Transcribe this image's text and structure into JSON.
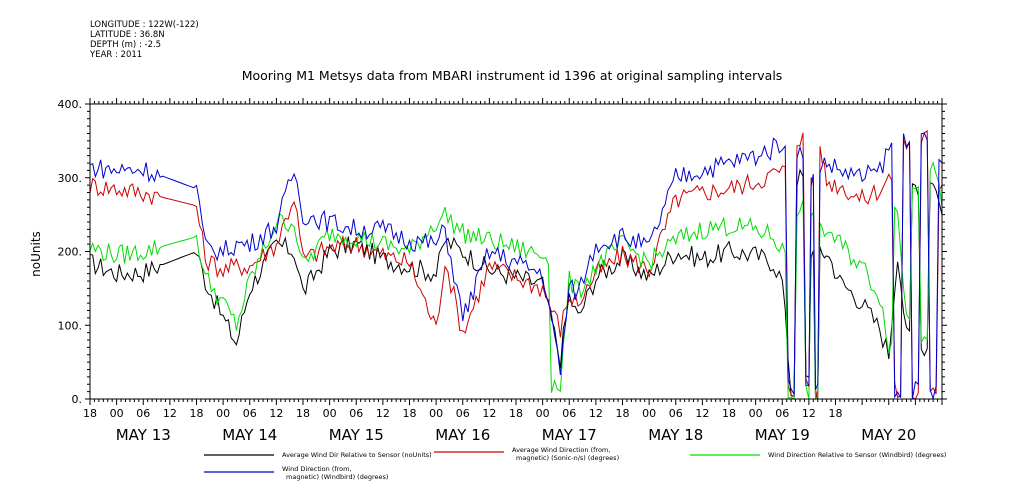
{
  "metadata": [
    "LONGITUDE : 122W(-122)",
    "LATITUDE : 36.8N",
    "DEPTH (m) : -2.5",
    "YEAR : 2011"
  ],
  "chart_data": {
    "type": "line",
    "title": "Mooring M1 Metsys data from MBARI instrument id 1396 at original sampling intervals",
    "ylabel": "noUnits",
    "xlabel": "",
    "ylim": [
      0,
      400
    ],
    "xlim": [
      -6,
      186
    ],
    "y_ticks": [
      "0.",
      "100.",
      "200.",
      "300.",
      "400."
    ],
    "x_hour_ticks": [
      "18",
      "00",
      "06",
      "12",
      "18",
      "00",
      "06",
      "12",
      "18",
      "00",
      "06",
      "12",
      "18",
      "00",
      "06",
      "12",
      "18",
      "00",
      "06",
      "12",
      "18",
      "00",
      "06",
      "12",
      "18",
      "00",
      "06",
      "12",
      "18"
    ],
    "x_day_labels": [
      "MAY 13",
      "MAY 14",
      "MAY 15",
      "MAY 16",
      "MAY 17",
      "MAY 18",
      "MAY 19",
      "MAY 20"
    ],
    "x_day_label_hours": [
      6,
      30,
      54,
      78,
      102,
      126,
      150,
      174
    ],
    "x_units": "hours since 2011-05-13 00:00",
    "grid": false,
    "legend_position": "bottom",
    "series": [
      {
        "name": "Average Wind Dir Relative to Sensor (noUnits)",
        "color": "#000000",
        "x": [
          -6,
          0,
          6,
          18,
          20,
          24,
          27,
          30,
          36,
          40,
          42,
          48,
          54,
          60,
          66,
          72,
          74,
          78,
          84,
          96,
          100,
          102,
          104,
          108,
          114,
          120,
          126,
          132,
          138,
          144,
          148,
          150,
          152,
          154,
          156,
          157,
          158,
          159,
          160,
          163,
          168,
          172,
          174,
          176,
          178,
          180,
          182,
          184,
          186
        ],
        "values": [
          185,
          170,
          172,
          200,
          160,
          110,
          75,
          150,
          210,
          200,
          145,
          200,
          210,
          190,
          180,
          170,
          215,
          200,
          175,
          155,
          55,
          140,
          110,
          165,
          190,
          165,
          200,
          190,
          200,
          195,
          185,
          160,
          10,
          300,
          25,
          200,
          5,
          195,
          200,
          160,
          130,
          95,
          60,
          200,
          85,
          290,
          70,
          300,
          250
        ]
      },
      {
        "name": "Average Wind Direction (from, magnetic) (Sonic-n/s) (degrees)",
        "color": "#cc0000",
        "x": [
          -6,
          0,
          6,
          18,
          20,
          24,
          27,
          30,
          36,
          40,
          42,
          48,
          54,
          60,
          66,
          72,
          74,
          78,
          84,
          96,
          100,
          102,
          104,
          108,
          114,
          120,
          126,
          132,
          138,
          144,
          148,
          150,
          152,
          154,
          156,
          157,
          158,
          159,
          160,
          163,
          168,
          172,
          174,
          176,
          178,
          180,
          182,
          184,
          186
        ],
        "values": [
          290,
          285,
          280,
          262,
          190,
          175,
          180,
          180,
          210,
          275,
          190,
          205,
          210,
          195,
          185,
          95,
          190,
          90,
          180,
          150,
          95,
          140,
          130,
          170,
          195,
          175,
          270,
          280,
          285,
          295,
          305,
          310,
          10,
          355,
          20,
          300,
          10,
          330,
          295,
          290,
          270,
          285,
          300,
          10,
          345,
          5,
          355,
          5,
          290
        ]
      },
      {
        "name": "Wind Direction Relative to Sensor (Windbird) (degrees)",
        "color": "#00dd00",
        "x": [
          -6,
          0,
          6,
          18,
          20,
          24,
          27,
          30,
          36,
          40,
          42,
          48,
          54,
          60,
          66,
          72,
          74,
          78,
          84,
          96,
          100,
          102,
          104,
          108,
          114,
          120,
          126,
          132,
          138,
          144,
          148,
          150,
          152,
          154,
          156,
          157,
          158,
          159,
          160,
          163,
          168,
          172,
          174,
          176,
          178,
          180,
          182,
          184,
          186
        ],
        "values": [
          205,
          195,
          200,
          220,
          165,
          130,
          100,
          160,
          240,
          240,
          180,
          225,
          220,
          210,
          200,
          240,
          250,
          225,
          215,
          195,
          20,
          160,
          145,
          180,
          210,
          185,
          215,
          230,
          235,
          230,
          220,
          200,
          5,
          260,
          10,
          240,
          5,
          225,
          230,
          210,
          180,
          140,
          75,
          255,
          110,
          295,
          90,
          320,
          260
        ]
      },
      {
        "name": "Wind Direction (from, magnetic) (Windbird) (degrees)",
        "color": "#0000cc",
        "x": [
          -6,
          0,
          6,
          18,
          20,
          24,
          27,
          30,
          36,
          40,
          42,
          48,
          54,
          60,
          66,
          72,
          74,
          78,
          84,
          96,
          100,
          102,
          104,
          108,
          114,
          120,
          126,
          132,
          138,
          144,
          148,
          150,
          152,
          154,
          156,
          157,
          158,
          159,
          160,
          163,
          168,
          172,
          174,
          176,
          178,
          180,
          182,
          184,
          186
        ],
        "values": [
          315,
          310,
          312,
          285,
          205,
          200,
          210,
          210,
          235,
          310,
          250,
          240,
          230,
          230,
          215,
          210,
          230,
          110,
          200,
          170,
          40,
          150,
          145,
          210,
          220,
          205,
          300,
          310,
          320,
          330,
          340,
          350,
          15,
          340,
          10,
          300,
          10,
          320,
          320,
          310,
          300,
          310,
          340,
          5,
          355,
          10,
          350,
          10,
          320
        ]
      }
    ]
  }
}
